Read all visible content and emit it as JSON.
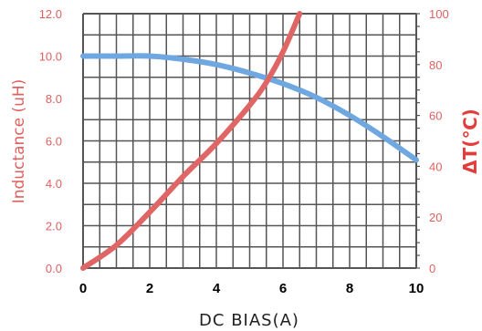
{
  "chart_data": {
    "type": "line",
    "xlabel": "DC BIAS(A)",
    "ylabel_left": "Inductance (uH)",
    "ylabel_right": "ΔT(℃)",
    "xlim": [
      0,
      10
    ],
    "ylim_left": [
      0,
      12
    ],
    "ylim_right": [
      0,
      100
    ],
    "x_ticks": [
      "0",
      "2",
      "4",
      "6",
      "8",
      "10"
    ],
    "y_left_ticks": [
      "0.0",
      "2.0",
      "4.0",
      "6.0",
      "8.0",
      "10.0",
      "12.0"
    ],
    "y_right_ticks": [
      "0",
      "20",
      "40",
      "60",
      "80",
      "100"
    ],
    "grid": true,
    "series": [
      {
        "axis": "left",
        "color": "#6fa8e0",
        "x": [
          0,
          1,
          2,
          3,
          4,
          5,
          6,
          7,
          8,
          9,
          10
        ],
        "y": [
          10.0,
          10.0,
          10.0,
          9.85,
          9.6,
          9.2,
          8.7,
          8.05,
          7.2,
          6.2,
          5.1
        ]
      },
      {
        "axis": "right",
        "color": "#e06666",
        "x": [
          0,
          1,
          2,
          3,
          4,
          5,
          5.5,
          6,
          6.5
        ],
        "y": [
          0,
          9,
          22,
          36,
          49,
          64,
          73,
          85,
          100
        ]
      }
    ]
  }
}
